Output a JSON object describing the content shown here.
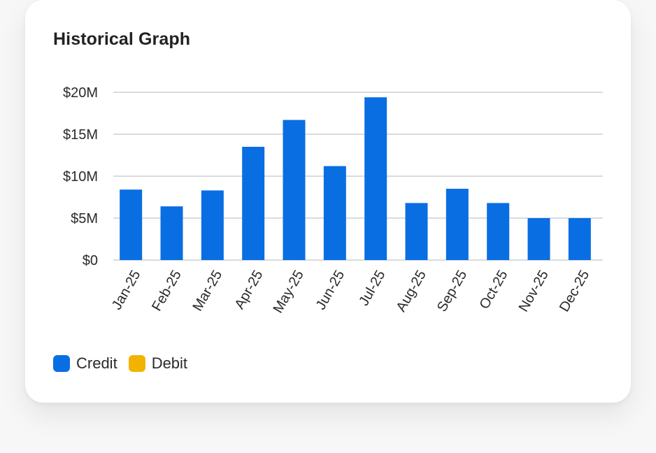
{
  "card": {
    "title": "Historical Graph"
  },
  "legend": {
    "items": [
      {
        "label": "Credit",
        "color": "#0a6ee3"
      },
      {
        "label": "Debit",
        "color": "#f2b300"
      }
    ]
  },
  "chart_data": {
    "type": "bar",
    "title": "Historical Graph",
    "xlabel": "",
    "ylabel": "",
    "categories": [
      "Jan-25",
      "Feb-25",
      "Mar-25",
      "Apr-25",
      "May-25",
      "Jun-25",
      "Jul-25",
      "Aug-25",
      "Sep-25",
      "Oct-25",
      "Nov-25",
      "Dec-25"
    ],
    "series": [
      {
        "name": "Credit",
        "color": "#0a6ee3",
        "values": [
          8.4,
          6.4,
          8.3,
          13.5,
          16.7,
          11.2,
          19.4,
          6.8,
          8.5,
          6.8,
          5.0,
          5.0
        ]
      },
      {
        "name": "Debit",
        "color": "#f2b300",
        "values": [
          0,
          0,
          0,
          0,
          0,
          0,
          0,
          0,
          0,
          0,
          0,
          0
        ]
      }
    ],
    "ylim": [
      0,
      20
    ],
    "yticks": [
      0,
      5,
      10,
      15,
      20
    ],
    "ytick_labels": [
      "$0",
      "$5M",
      "$10M",
      "$15M",
      "$20M"
    ],
    "grid": true,
    "legend_position": "bottom-left"
  }
}
